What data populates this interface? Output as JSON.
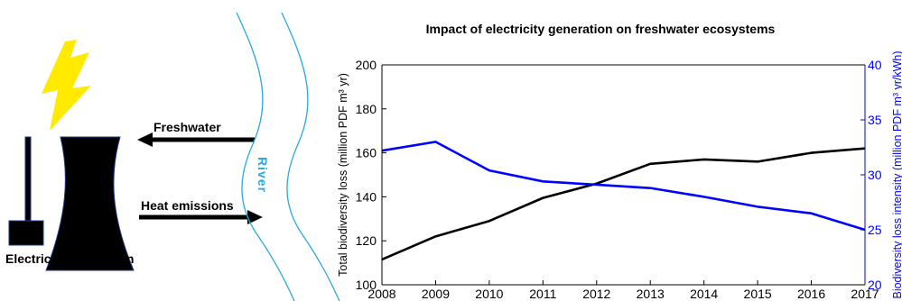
{
  "diagram": {
    "freshwater_label": "Freshwater",
    "heat_label": "Heat emissions",
    "plant_label": "Electricity generation",
    "river_label": "River",
    "bolt_color": "#ffea00",
    "river_color": "#29a8e0"
  },
  "chart_data": {
    "type": "line",
    "title": "Impact of electricity generation on freshwater ecosystems",
    "xlabel": "",
    "ylabel_left": "Total biodiversity loss (million PDF m³ yr)",
    "ylabel_right": "Biodiversity loss intensity (million PDF m³ yr/kWh)",
    "x": [
      2008,
      2009,
      2010,
      2011,
      2012,
      2013,
      2014,
      2015,
      2016,
      2017
    ],
    "xlim": [
      2008,
      2017
    ],
    "ylim_left": [
      100,
      200
    ],
    "ylim_right": [
      20,
      40
    ],
    "yticks_left": [
      100,
      120,
      140,
      160,
      180,
      200
    ],
    "yticks_right": [
      20,
      25,
      30,
      35,
      40
    ],
    "series": [
      {
        "axis": "left",
        "color": "#000000",
        "values": [
          111.5,
          122,
          129,
          139.5,
          146,
          155,
          157,
          156,
          160,
          162
        ]
      },
      {
        "axis": "right",
        "color": "#0000ff",
        "values": [
          32.2,
          33,
          30.4,
          29.4,
          29.1,
          28.8,
          28,
          27.1,
          26.5,
          25
        ]
      }
    ],
    "grid": false
  }
}
